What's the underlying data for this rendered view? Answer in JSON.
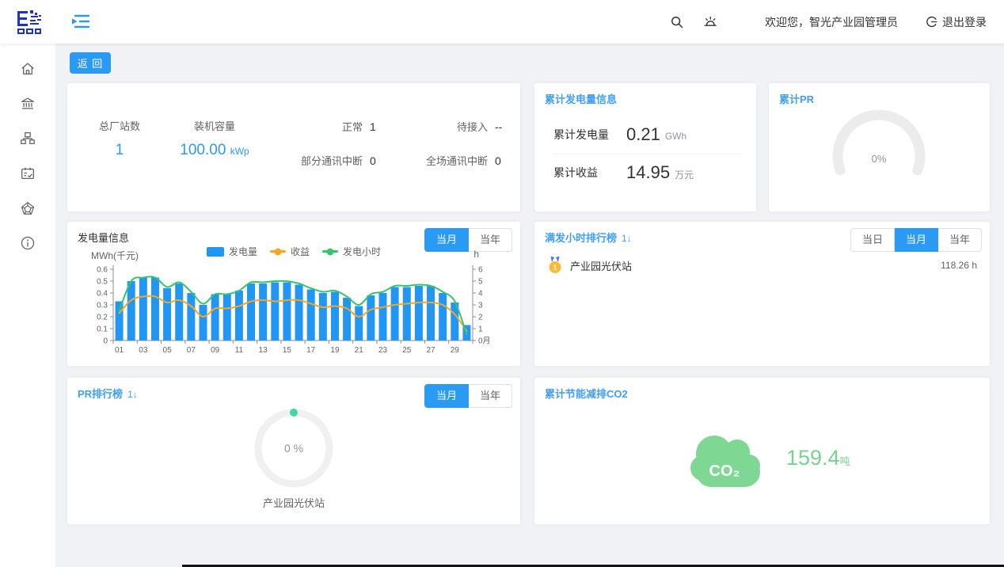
{
  "colors": {
    "primary": "#2b9af3",
    "card_title": "#409eff",
    "bar_blue": "#2196f3",
    "income_orange": "#f5a623",
    "hours_green": "#35c56d",
    "co2_green": "#7ed893",
    "gauge_gray": "#ececec",
    "ring_dot_teal": "#47d5a5",
    "medal_gold": "#ffb838"
  },
  "header": {
    "welcome": "欢迎您，智光产业园管理员",
    "logout_label": "退出登录"
  },
  "toolbar": {
    "back_label": "返 回"
  },
  "overview": {
    "stations": {
      "label": "总厂站数",
      "value": "1"
    },
    "capacity": {
      "label": "装机容量",
      "value": "100.00",
      "unit": "kWp"
    },
    "normal": {
      "label": "正常",
      "value": "1"
    },
    "pending": {
      "label": "待接入",
      "value": "--"
    },
    "partial_offline": {
      "label": "部分通讯中断",
      "value": "0"
    },
    "full_offline": {
      "label": "全场通讯中断",
      "value": "0"
    }
  },
  "cumulative_energy": {
    "title": "累计发电量信息",
    "energy": {
      "label": "累计发电量",
      "value": "0.21",
      "unit": "GWh"
    },
    "income": {
      "label": "累计收益",
      "value": "14.95",
      "unit": "万元"
    }
  },
  "cumulative_pr": {
    "title": "累计PR",
    "value": "0%"
  },
  "generation": {
    "title": "发电量信息",
    "tabs": [
      "当月",
      "当年"
    ],
    "active_tab": "当月",
    "unit_left": "MWh(千元)",
    "unit_right": "h"
  },
  "chart_data": {
    "type": "bar",
    "title": "发电量信息",
    "x": [
      "01",
      "02",
      "03",
      "04",
      "05",
      "06",
      "07",
      "08",
      "09",
      "10",
      "11",
      "12",
      "13",
      "14",
      "15",
      "16",
      "17",
      "18",
      "19",
      "20",
      "21",
      "22",
      "23",
      "24",
      "25",
      "26",
      "27",
      "28",
      "29",
      "30"
    ],
    "x_tick_labels": [
      "01",
      "03",
      "05",
      "07",
      "09",
      "11",
      "13",
      "15",
      "17",
      "19",
      "21",
      "23",
      "25",
      "27",
      "29"
    ],
    "x_axis_name": "月",
    "y_left": {
      "label": "MWh(千元)",
      "min": 0,
      "max": 0.6,
      "step": 0.1
    },
    "y_right": {
      "label": "h",
      "min": 0,
      "max": 6,
      "step": 1
    },
    "legend": [
      "发电量",
      "收益",
      "发电小时"
    ],
    "legend_position": "top",
    "series": [
      {
        "name": "发电量",
        "type": "bar",
        "axis": "left",
        "color": "#2196f3",
        "values": [
          0.33,
          0.5,
          0.53,
          0.53,
          0.44,
          0.48,
          0.4,
          0.3,
          0.39,
          0.39,
          0.42,
          0.48,
          0.48,
          0.49,
          0.49,
          0.47,
          0.43,
          0.4,
          0.41,
          0.36,
          0.29,
          0.38,
          0.4,
          0.45,
          0.45,
          0.46,
          0.46,
          0.4,
          0.32,
          0.13
        ]
      },
      {
        "name": "收益",
        "type": "line",
        "axis": "left",
        "color": "#f5a623",
        "values": [
          0.23,
          0.34,
          0.37,
          0.37,
          0.32,
          0.34,
          0.29,
          0.2,
          0.27,
          0.27,
          0.29,
          0.33,
          0.34,
          0.33,
          0.34,
          0.34,
          0.31,
          0.28,
          0.29,
          0.27,
          0.2,
          0.26,
          0.28,
          0.3,
          0.31,
          0.32,
          0.32,
          0.3,
          0.22,
          0.08
        ]
      },
      {
        "name": "发电小时",
        "type": "line",
        "axis": "right",
        "color": "#35c56d",
        "values": [
          2.5,
          5.0,
          5.3,
          5.3,
          4.5,
          4.9,
          4.1,
          3.1,
          3.9,
          3.9,
          4.2,
          4.9,
          4.9,
          5.0,
          5.0,
          4.8,
          4.4,
          4.1,
          4.2,
          3.7,
          3.0,
          3.9,
          4.1,
          4.6,
          4.6,
          4.7,
          4.6,
          4.1,
          3.3,
          0.5
        ]
      }
    ]
  },
  "full_hours": {
    "title": "满发小时排行榜",
    "sort_badge": "1↓",
    "tabs": [
      "当日",
      "当月",
      "当年"
    ],
    "active_tab": "当月",
    "items": [
      {
        "rank": "1",
        "name": "产业园光伏站",
        "value": "118.26 h"
      }
    ]
  },
  "pr_rank": {
    "title": "PR排行榜",
    "sort_badge": "1↓",
    "tabs": [
      "当月",
      "当年"
    ],
    "active_tab": "当月",
    "value": "0 %",
    "station": "产业园光伏站"
  },
  "co2": {
    "title": "累计节能减排CO2",
    "cloud_label": "CO₂",
    "value": "159.4",
    "unit": "吨"
  }
}
